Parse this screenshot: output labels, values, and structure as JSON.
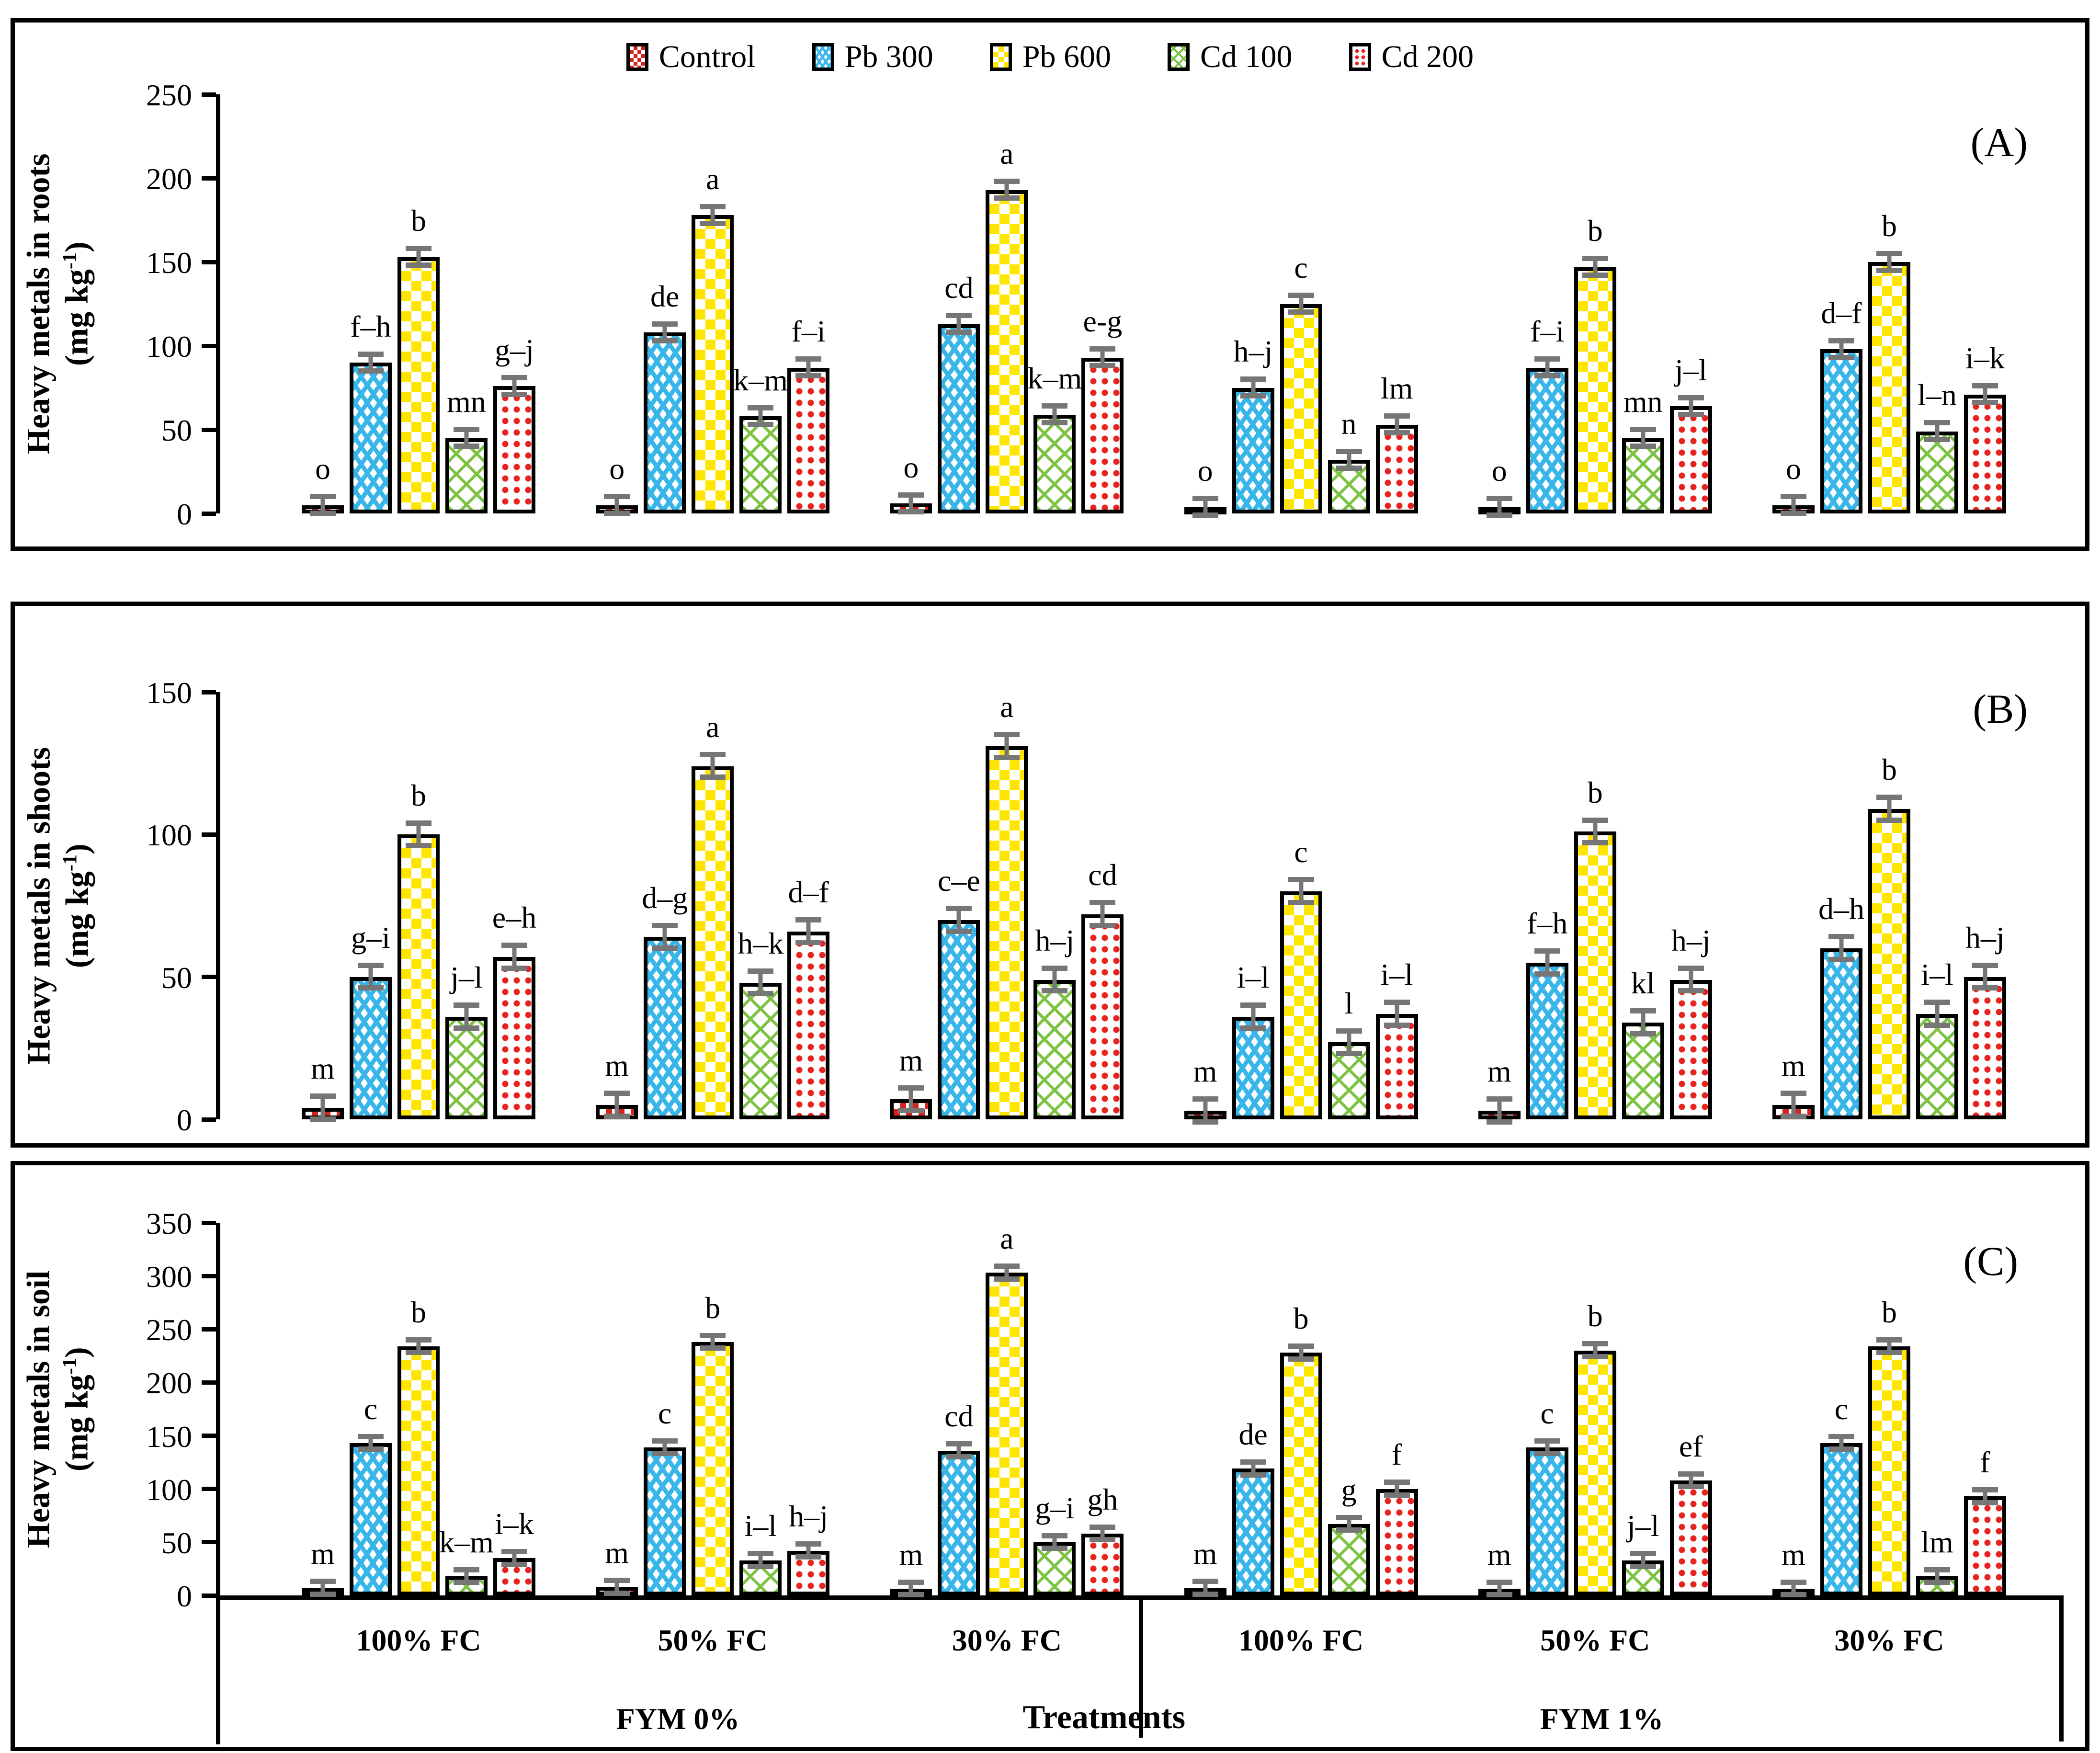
{
  "figure": {
    "background": "#ffffff",
    "error_bar_color": "#767676",
    "axis_color": "#000000"
  },
  "legend": {
    "items": [
      {
        "label": "Control",
        "pattern": "control",
        "color": "#d7231d"
      },
      {
        "label": "Pb 300",
        "pattern": "pb300",
        "color": "#38b6e9"
      },
      {
        "label": "Pb 600",
        "pattern": "pb600",
        "color": "#ffe600"
      },
      {
        "label": "Cd 100",
        "pattern": "cd100",
        "color": "#7cc342"
      },
      {
        "label": "Cd 200",
        "pattern": "cd200",
        "color": "#e8231d"
      }
    ]
  },
  "axis_bottom": {
    "tier1": [
      "100% FC",
      "50% FC",
      "30% FC",
      "100% FC",
      "50% FC",
      "30% FC"
    ],
    "tier2": [
      "FYM 0%",
      "FYM 1%"
    ],
    "title": "Treatments"
  },
  "chart_data": [
    {
      "type": "bar",
      "panel_label": "(A)",
      "ylabel": "Heavy metals in roots",
      "ylabel_unit_prefix": "(mg kg",
      "ylabel_unit_sup": "-1",
      "ylabel_unit_suffix": ")",
      "ylim": [
        0,
        250
      ],
      "yticks": [
        0,
        50,
        100,
        150,
        200,
        250
      ],
      "categories": [
        "100% FC",
        "50% FC",
        "30% FC",
        "100% FC",
        "50% FC",
        "30% FC"
      ],
      "group_sections": [
        "FYM 0%",
        "FYM 1%"
      ],
      "legend_position": "top",
      "grid": false,
      "err_units": 5,
      "series": [
        {
          "name": "Control",
          "pattern": "control",
          "values": [
            5,
            5,
            6,
            3,
            3,
            5
          ],
          "sig_letters": [
            "o",
            "o",
            "o",
            "o",
            "o",
            "o"
          ]
        },
        {
          "name": "Pb 300",
          "pattern": "pb300",
          "values": [
            90,
            108,
            113,
            75,
            87,
            98
          ],
          "sig_letters": [
            "f–h",
            "de",
            "cd",
            "h–j",
            "f–i",
            "d–f"
          ]
        },
        {
          "name": "Pb 600",
          "pattern": "pb600",
          "values": [
            153,
            178,
            193,
            125,
            147,
            150
          ],
          "sig_letters": [
            "b",
            "a",
            "a",
            "c",
            "b",
            "b"
          ]
        },
        {
          "name": "Cd 100",
          "pattern": "cd100",
          "values": [
            45,
            58,
            59,
            32,
            45,
            49
          ],
          "sig_letters": [
            "mn",
            "k–m",
            "k–m",
            "n",
            "mn",
            "l–n"
          ]
        },
        {
          "name": "Cd 200",
          "pattern": "cd200",
          "values": [
            76,
            87,
            93,
            53,
            64,
            71
          ],
          "sig_letters": [
            "g–j",
            "f–i",
            "e-g",
            "lm",
            "j–l",
            "i–k"
          ]
        }
      ]
    },
    {
      "type": "bar",
      "panel_label": "(B)",
      "ylabel": "Heavy metals in shoots",
      "ylabel_unit_prefix": "(mg kg",
      "ylabel_unit_sup": "-1",
      "ylabel_unit_suffix": ")",
      "ylim": [
        0,
        150
      ],
      "yticks": [
        0,
        50,
        100,
        150
      ],
      "categories": [
        "100% FC",
        "50% FC",
        "30% FC",
        "100% FC",
        "50% FC",
        "30% FC"
      ],
      "group_sections": [
        "FYM 0%",
        "FYM 1%"
      ],
      "grid": false,
      "err_units": 4,
      "series": [
        {
          "name": "Control",
          "pattern": "control",
          "values": [
            4,
            5,
            7,
            3,
            3,
            5
          ],
          "sig_letters": [
            "m",
            "m",
            "m",
            "m",
            "m",
            "m"
          ]
        },
        {
          "name": "Pb 300",
          "pattern": "pb300",
          "values": [
            50,
            64,
            70,
            36,
            55,
            60
          ],
          "sig_letters": [
            "g–i",
            "d–g",
            "c–e",
            "i–l",
            "f–h",
            "d–h"
          ]
        },
        {
          "name": "Pb 600",
          "pattern": "pb600",
          "values": [
            100,
            124,
            131,
            80,
            101,
            109
          ],
          "sig_letters": [
            "b",
            "a",
            "a",
            "c",
            "b",
            "b"
          ]
        },
        {
          "name": "Cd 100",
          "pattern": "cd100",
          "values": [
            36,
            48,
            49,
            27,
            34,
            37
          ],
          "sig_letters": [
            "j–l",
            "h–k",
            "h–j",
            "l",
            "kl",
            "i–l"
          ]
        },
        {
          "name": "Cd 200",
          "pattern": "cd200",
          "values": [
            57,
            66,
            72,
            37,
            49,
            50
          ],
          "sig_letters": [
            "e–h",
            "d–f",
            "cd",
            "i–l",
            "h–j",
            "h–j"
          ]
        }
      ]
    },
    {
      "type": "bar",
      "panel_label": "(C)",
      "ylabel": "Heavy metals in soil",
      "ylabel_unit_prefix": "(mg kg",
      "ylabel_unit_sup": "-1",
      "ylabel_unit_suffix": ")",
      "ylim": [
        0,
        350
      ],
      "yticks": [
        0,
        50,
        100,
        150,
        200,
        250,
        300,
        350
      ],
      "categories": [
        "100% FC",
        "50% FC",
        "30% FC",
        "100% FC",
        "50% FC",
        "30% FC"
      ],
      "group_sections": [
        "FYM 0%",
        "FYM 1%"
      ],
      "xlabel": "Treatments",
      "grid": false,
      "err_units": 6,
      "series": [
        {
          "name": "Control",
          "pattern": "control",
          "values": [
            7,
            8,
            4,
            7,
            4,
            5
          ],
          "sig_letters": [
            "m",
            "m",
            "m",
            "m",
            "m",
            "m"
          ]
        },
        {
          "name": "Pb 300",
          "pattern": "pb300",
          "values": [
            143,
            139,
            136,
            119,
            139,
            143
          ],
          "sig_letters": [
            "c",
            "c",
            "cd",
            "de",
            "c",
            "c"
          ]
        },
        {
          "name": "Pb 600",
          "pattern": "pb600",
          "values": [
            234,
            238,
            303,
            228,
            230,
            234
          ],
          "sig_letters": [
            "b",
            "b",
            "a",
            "b",
            "b",
            "b"
          ]
        },
        {
          "name": "Cd 100",
          "pattern": "cd100",
          "values": [
            18,
            33,
            50,
            67,
            33,
            18
          ],
          "sig_letters": [
            "k–m",
            "i–l",
            "g–i",
            "g",
            "j–l",
            "lm"
          ]
        },
        {
          "name": "Cd 200",
          "pattern": "cd200",
          "values": [
            35,
            42,
            58,
            100,
            108,
            93
          ],
          "sig_letters": [
            "i–k",
            "h–j",
            "gh",
            "f",
            "ef",
            "f"
          ]
        }
      ]
    }
  ]
}
